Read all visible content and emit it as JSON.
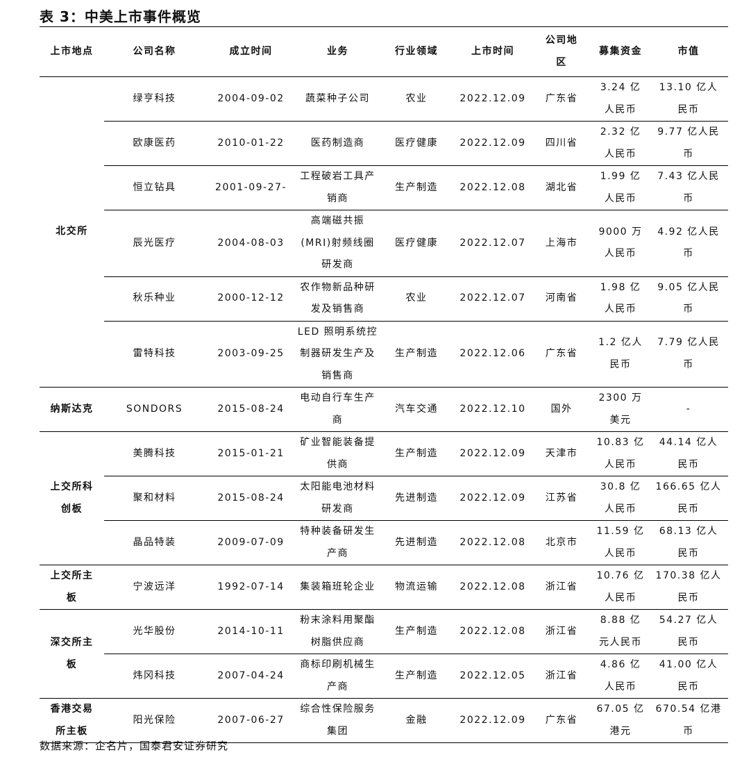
{
  "title": "表 3：中美上市事件概览",
  "headers": [
    "上市地点",
    "公司名称",
    "成立时间",
    "业务",
    "行业领域",
    "上市时间",
    "公司地\n区",
    "募集资金",
    "市值"
  ],
  "groups": [
    {
      "venue": "北交所",
      "rows": [
        [
          "绿亨科技",
          "2004-09-02",
          "蔬菜种子公司",
          "农业",
          "2022.12.09",
          "广东省",
          "3.24 亿\n人民币",
          "13.10 亿人\n民币"
        ],
        [
          "欧康医药",
          "2010-01-22",
          "医药制造商",
          "医疗健康",
          "2022.12.09",
          "四川省",
          "2.32 亿\n人民币",
          "9.77 亿人民\n币"
        ],
        [
          "恒立钻具",
          "2001-09-27-",
          "工程破岩工具产\n销商",
          "生产制造",
          "2022.12.08",
          "湖北省",
          "1.99 亿\n人民币",
          "7.43 亿人民\n币"
        ],
        [
          "辰光医疗",
          "2004-08-03",
          "高端磁共振\n(MRI)射频线圈\n研发商",
          "医疗健康",
          "2022.12.07",
          "上海市",
          "9000 万\n人民币",
          "4.92 亿人民\n币"
        ],
        [
          "秋乐种业",
          "2000-12-12",
          "农作物新品种研\n发及销售商",
          "农业",
          "2022.12.07",
          "河南省",
          "1.98 亿\n人民币",
          "9.05 亿人民\n币"
        ],
        [
          "雷特科技",
          "2003-09-25",
          "LED 照明系统控\n制器研发生产及\n销售商",
          "生产制造",
          "2022.12.06",
          "广东省",
          "1.2 亿人\n民币",
          "7.79 亿人民\n币"
        ]
      ]
    },
    {
      "venue": "纳斯达克",
      "rows": [
        [
          "SONDORS",
          "2015-08-24",
          "电动自行车生产\n商",
          "汽车交通",
          "2022.12.10",
          "国外",
          "2300 万\n美元",
          "-"
        ]
      ]
    },
    {
      "venue": "上交所科\n创板",
      "rows": [
        [
          "美腾科技",
          "2015-01-21",
          "矿业智能装备提\n供商",
          "生产制造",
          "2022.12.09",
          "天津市",
          "10.83 亿\n人民币",
          "44.14 亿人\n民币"
        ],
        [
          "聚和材料",
          "2015-08-24",
          "太阳能电池材料\n研发商",
          "先进制造",
          "2022.12.09",
          "江苏省",
          "30.8 亿\n人民币",
          "166.65 亿人\n民币"
        ],
        [
          "晶品特装",
          "2009-07-09",
          "特种装备研发生\n产商",
          "先进制造",
          "2022.12.08",
          "北京市",
          "11.59 亿\n人民币",
          "68.13 亿人\n民币"
        ]
      ]
    },
    {
      "venue": "上交所主\n板",
      "rows": [
        [
          "宁波远洋",
          "1992-07-14",
          "集装箱班轮企业",
          "物流运输",
          "2022.12.08",
          "浙江省",
          "10.76 亿\n人民币",
          "170.38 亿人\n民币"
        ]
      ]
    },
    {
      "venue": "深交所主\n板",
      "rows": [
        [
          "光华股份",
          "2014-10-11",
          "粉末涂料用聚酯\n树脂供应商",
          "生产制造",
          "2022.12.08",
          "浙江省",
          "8.88 亿\n元人民币",
          "54.27 亿人\n民币"
        ],
        [
          "炜冈科技",
          "2007-04-24",
          "商标印刷机械生\n产商",
          "生产制造",
          "2022.12.05",
          "浙江省",
          "4.86 亿\n人民币",
          "41.00 亿人\n民币"
        ]
      ]
    },
    {
      "venue": "香港交易\n所主板",
      "rows": [
        [
          "阳光保险",
          "2007-06-27",
          "综合性保险服务\n集团",
          "金融",
          "2022.12.09",
          "广东省",
          "67.05 亿\n港元",
          "670.54 亿港\n币"
        ]
      ]
    }
  ],
  "source": "数据来源：企名片，国泰君安证券研究"
}
